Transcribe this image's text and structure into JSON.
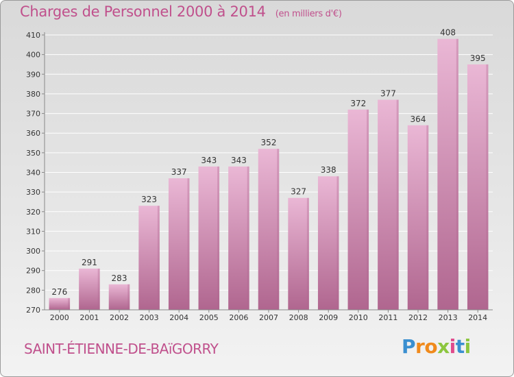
{
  "title": "Charges de Personnel 2000 à 2014",
  "unit": "(en milliers d'€)",
  "commune": "SAINT-ÉTIENNE-DE-BAïGORRY",
  "brand": {
    "letters": [
      "P",
      "r",
      "o",
      "x",
      "i",
      "t",
      "i"
    ],
    "colors": [
      "#3a8fd0",
      "#f08a1c",
      "#f08a1c",
      "#8cc63f",
      "#e04a8c",
      "#3a8fd0",
      "#8cc63f"
    ]
  },
  "colors": {
    "title": "#c0508c",
    "bar_light": "#eab7d5",
    "bar_dark": "#b0668f",
    "grid": "#ffffff",
    "text": "#333333"
  },
  "chart_data": {
    "type": "bar",
    "categories": [
      "2000",
      "2001",
      "2002",
      "2003",
      "2004",
      "2005",
      "2006",
      "2007",
      "2008",
      "2009",
      "2010",
      "2011",
      "2012",
      "2013",
      "2014"
    ],
    "values": [
      276,
      291,
      283,
      323,
      337,
      343,
      343,
      352,
      327,
      338,
      372,
      377,
      364,
      408,
      395
    ],
    "ylim": [
      270,
      410
    ],
    "yticks": [
      270,
      280,
      290,
      300,
      310,
      320,
      330,
      340,
      350,
      360,
      370,
      380,
      390,
      400,
      410
    ],
    "grid": true,
    "legend": "none"
  }
}
